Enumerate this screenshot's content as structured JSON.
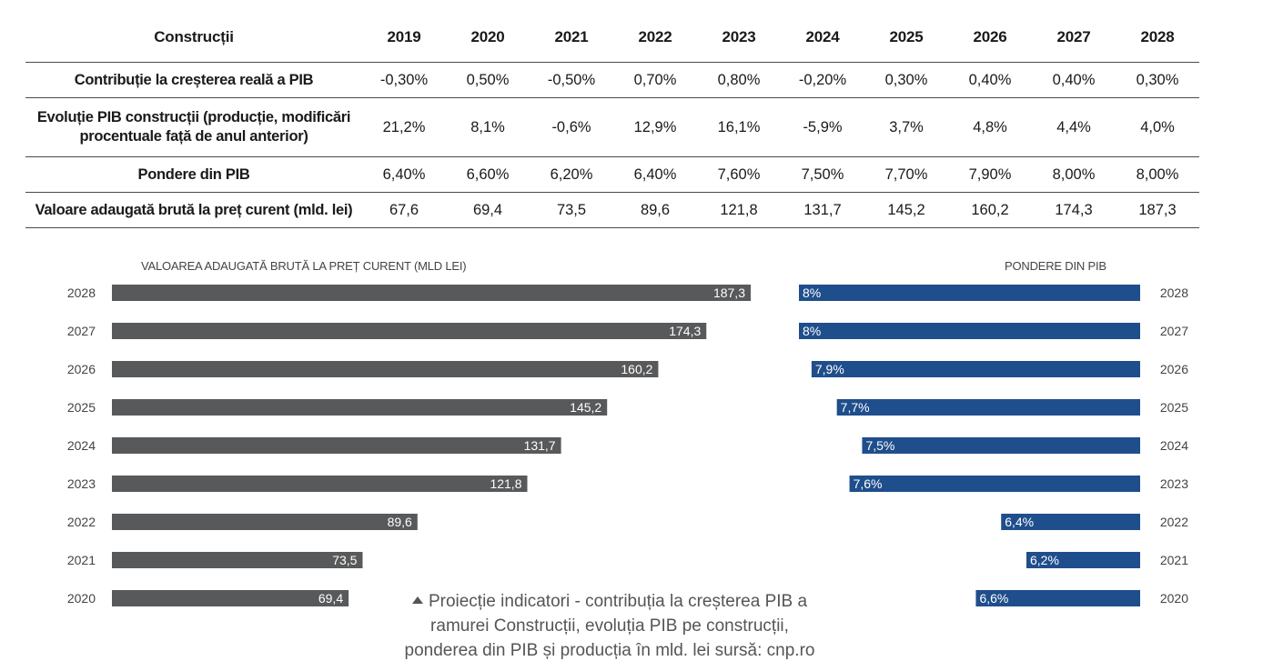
{
  "table": {
    "header_label": "Construcții",
    "years": [
      "2019",
      "2020",
      "2021",
      "2022",
      "2023",
      "2024",
      "2025",
      "2026",
      "2027",
      "2028"
    ],
    "rows": [
      {
        "label": "Contribuție la creșterea reală a PIB",
        "values": [
          "-0,30%",
          "0,50%",
          "-0,50%",
          "0,70%",
          "0,80%",
          "-0,20%",
          "0,30%",
          "0,40%",
          "0,40%",
          "0,30%"
        ]
      },
      {
        "label": "Evoluție PIB construcții (producție, modificări procentuale față de anul anterior)",
        "values": [
          "21,2%",
          "8,1%",
          "-0,6%",
          "12,9%",
          "16,1%",
          "-5,9%",
          "3,7%",
          "4,8%",
          "4,4%",
          "4,0%"
        ]
      },
      {
        "label": "Pondere din PIB",
        "values": [
          "6,40%",
          "6,60%",
          "6,20%",
          "6,40%",
          "7,60%",
          "7,50%",
          "7,70%",
          "7,90%",
          "8,00%",
          "8,00%"
        ]
      },
      {
        "label": "Valoare adaugată brută la preț curent (mld. lei)",
        "values": [
          "67,6",
          "69,4",
          "73,5",
          "89,6",
          "121,8",
          "131,7",
          "145,2",
          "160,2",
          "174,3",
          "187,3"
        ]
      }
    ]
  },
  "chart_data": [
    {
      "type": "bar",
      "orientation": "horizontal",
      "title": "VALOAREA ADAUGATĂ BRUTĂ LA PREȚ CURENT (MLD LEI)",
      "categories": [
        "2028",
        "2027",
        "2026",
        "2025",
        "2024",
        "2023",
        "2022",
        "2021",
        "2020"
      ],
      "values": [
        187.3,
        174.3,
        160.2,
        145.2,
        131.7,
        121.8,
        89.6,
        73.5,
        69.4
      ],
      "labels": [
        "187,3",
        "174,3",
        "160,2",
        "145,2",
        "131,7",
        "121,8",
        "89,6",
        "73,5",
        "69,4"
      ],
      "color": "#58595b",
      "bar_direction": "left-to-right",
      "xlim": [
        0,
        187.3
      ]
    },
    {
      "type": "bar",
      "orientation": "horizontal",
      "title": "PONDERE DIN PIB",
      "categories": [
        "2028",
        "2027",
        "2026",
        "2025",
        "2024",
        "2023",
        "2022",
        "2021",
        "2020"
      ],
      "values": [
        8.0,
        8.0,
        7.9,
        7.7,
        7.5,
        7.6,
        6.4,
        6.2,
        6.6
      ],
      "labels": [
        "8%",
        "8%",
        "7,9%",
        "7,7%",
        "7,5%",
        "7,6%",
        "6,4%",
        "6,2%",
        "6,6%"
      ],
      "color": "#1f4e8c",
      "bar_direction": "right-to-left",
      "xlim": [
        0,
        8.0
      ]
    }
  ],
  "caption": "Proiecție indicatori - contribuția la creșterea PIB a ramurei Construcții, evoluția PIB pe construcții, ponderea din PIB și producția în mld. lei sursă: cnp.ro",
  "caption_icon": "triangle-up-icon"
}
